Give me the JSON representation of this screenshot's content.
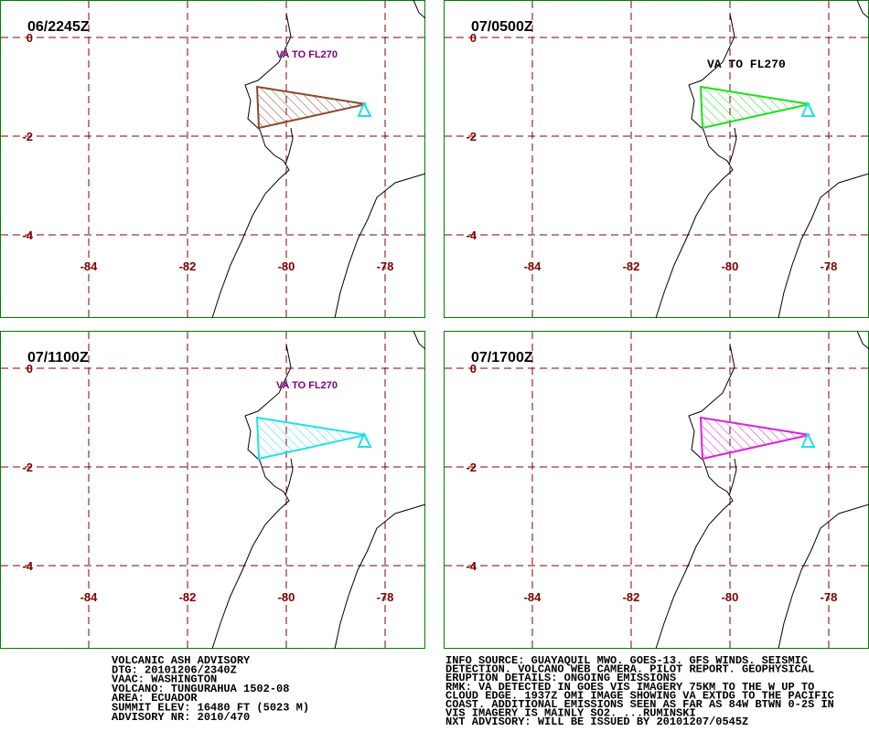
{
  "panels": [
    {
      "title": "06/2245Z",
      "label": "VA TO FL270",
      "color": "#8b4a2b"
    },
    {
      "title": "07/0500Z",
      "label": "VA TO FL270",
      "color": "#22dd22"
    },
    {
      "title": "07/1100Z",
      "label": "VA TO FL270",
      "color": "#22e0e8"
    },
    {
      "title": "07/1700Z",
      "color": "#dd22dd"
    }
  ],
  "yticks": [
    0,
    -2,
    -4
  ],
  "xticks": [
    -84,
    -82,
    -80,
    -78
  ],
  "advisory_left": [
    "VOLCANIC ASH ADVISORY",
    "DTG: 20101206/2340Z",
    "VAAC: WASHINGTON",
    "VOLCANO: TUNGURAHUA 1502-08",
    "AREA: ECUADOR",
    "SUMMIT ELEV: 16480 FT (5023 M)",
    "ADVISORY NR: 2010/470"
  ],
  "advisory_right": [
    "INFO SOURCE: GUAYAQUIL MWO. GOES-13. GFS WINDS. SEISMIC",
    "DETECTION. VOLCANO WEB CAMERA. PILOT REPORT. GEOPHYSICAL",
    "ERUPTION DETAILS: ONGOING EMISSIONS",
    "RMK: VA DETECTED IN GOES VIS IMAGERY 75KM TO THE W UP TO",
    "CLOUD EDGE. 1937Z OMI IMAGE SHOWING VA EXTDG TO THE PACIFIC",
    "COAST. ADDITIONAL EMISSIONS SEEN AS FAR AS 84W BTWN 0-2S IN",
    "VIS IMAGERY IS MAINLY SO2. ...RUMINSKI",
    "NXT ADVISORY: WILL BE ISSUED BY 20101207/0545Z"
  ]
}
